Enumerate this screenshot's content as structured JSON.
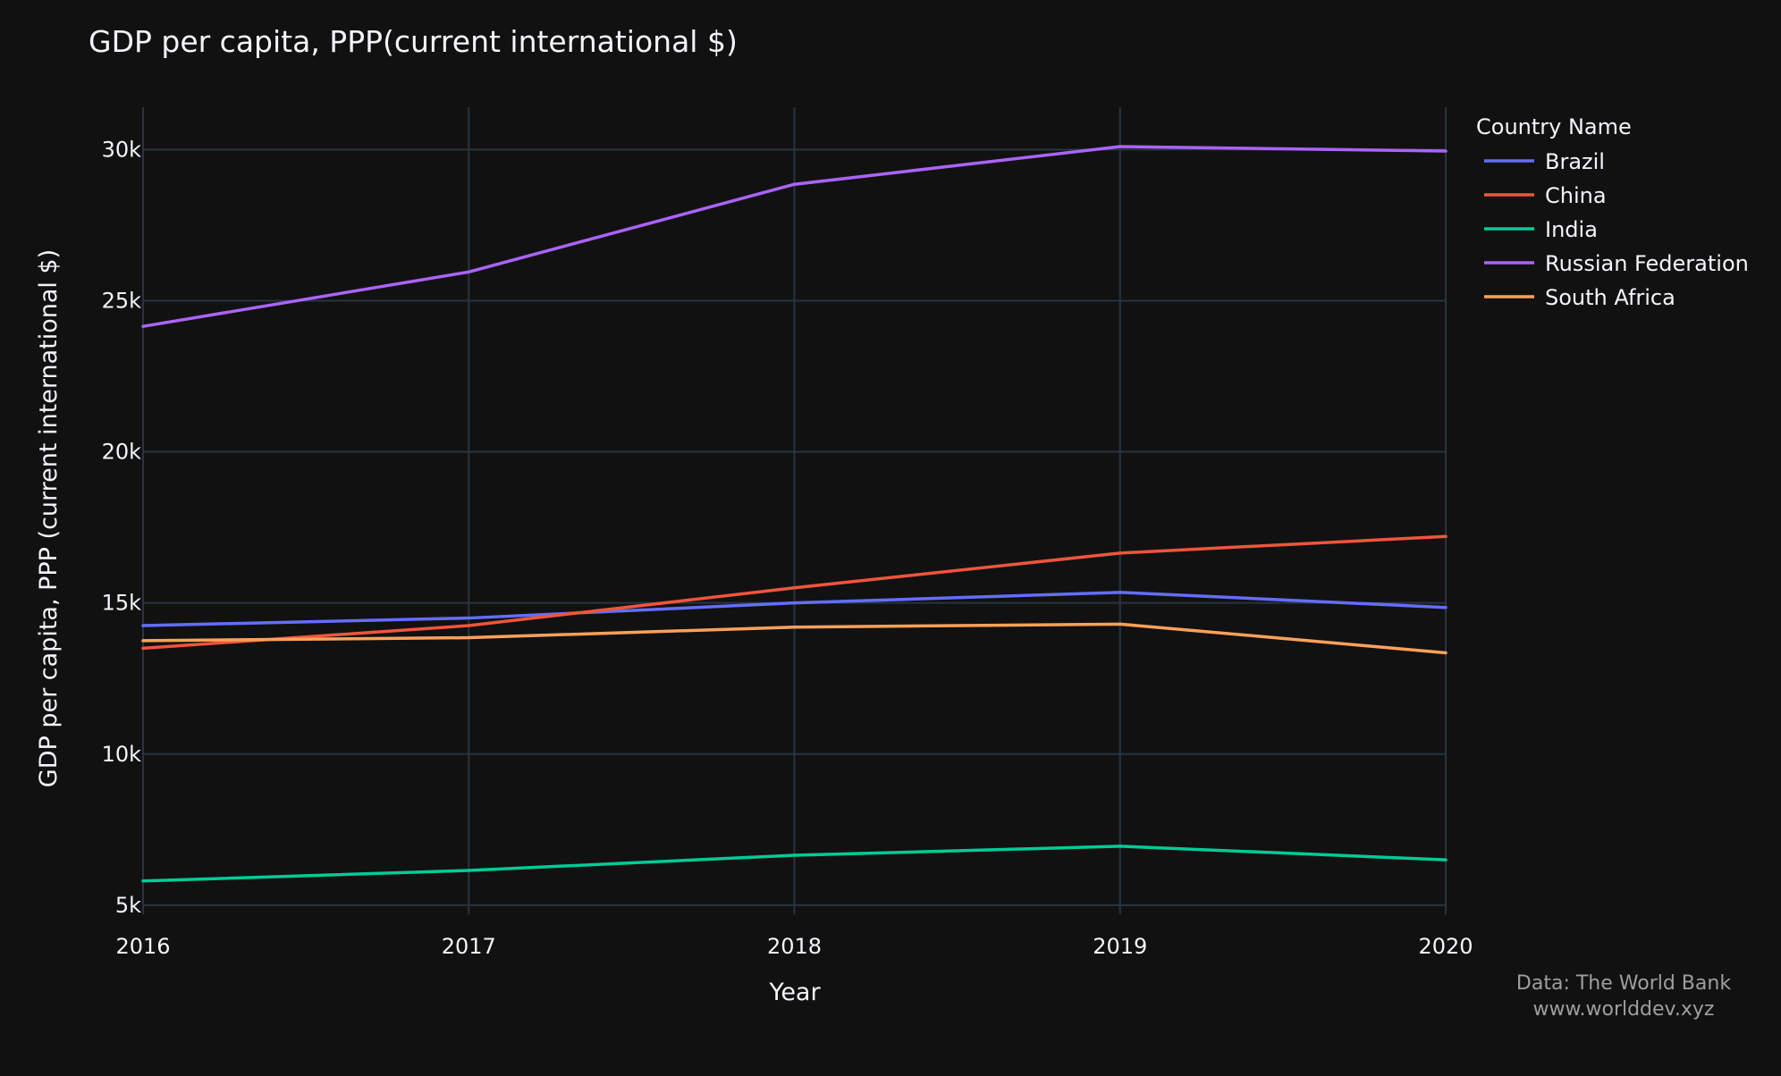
{
  "chart_data": {
    "type": "line",
    "title": "GDP per capita, PPP(current international $)",
    "xlabel": "Year",
    "ylabel": "GDP per capita, PPP (current international $)",
    "x": [
      2016,
      2017,
      2018,
      2019,
      2020
    ],
    "x_ticks": [
      "2016",
      "2017",
      "2018",
      "2019",
      "2020"
    ],
    "y_ticks": [
      {
        "value": 5000,
        "label": "5k"
      },
      {
        "value": 10000,
        "label": "10k"
      },
      {
        "value": 15000,
        "label": "15k"
      },
      {
        "value": 20000,
        "label": "20k"
      },
      {
        "value": 25000,
        "label": "25k"
      },
      {
        "value": 30000,
        "label": "30k"
      }
    ],
    "xlim": [
      2016,
      2020
    ],
    "ylim": [
      4700,
      31400
    ],
    "grid": true,
    "legend": {
      "title": "Country Name",
      "position": "top-right"
    },
    "series": [
      {
        "name": "Brazil",
        "color": "#636efa",
        "values": [
          14250,
          14500,
          15000,
          15350,
          14850
        ]
      },
      {
        "name": "China",
        "color": "#ef553b",
        "values": [
          13500,
          14250,
          15500,
          16650,
          17200
        ]
      },
      {
        "name": "India",
        "color": "#00cc96",
        "values": [
          5800,
          6150,
          6650,
          6950,
          6500
        ]
      },
      {
        "name": "Russian Federation",
        "color": "#ab63fa",
        "values": [
          24150,
          25950,
          28850,
          30100,
          29950
        ]
      },
      {
        "name": "South Africa",
        "color": "#ffa15a",
        "values": [
          13750,
          13850,
          14200,
          14300,
          13350
        ]
      }
    ],
    "annotation": {
      "line1": "Data: The World Bank",
      "line2": "www.worlddev.xyz"
    }
  },
  "colors": {
    "background": "#111111",
    "grid": "#283442",
    "text": "#f2f5fa",
    "annotation": "#9e9e9e"
  }
}
